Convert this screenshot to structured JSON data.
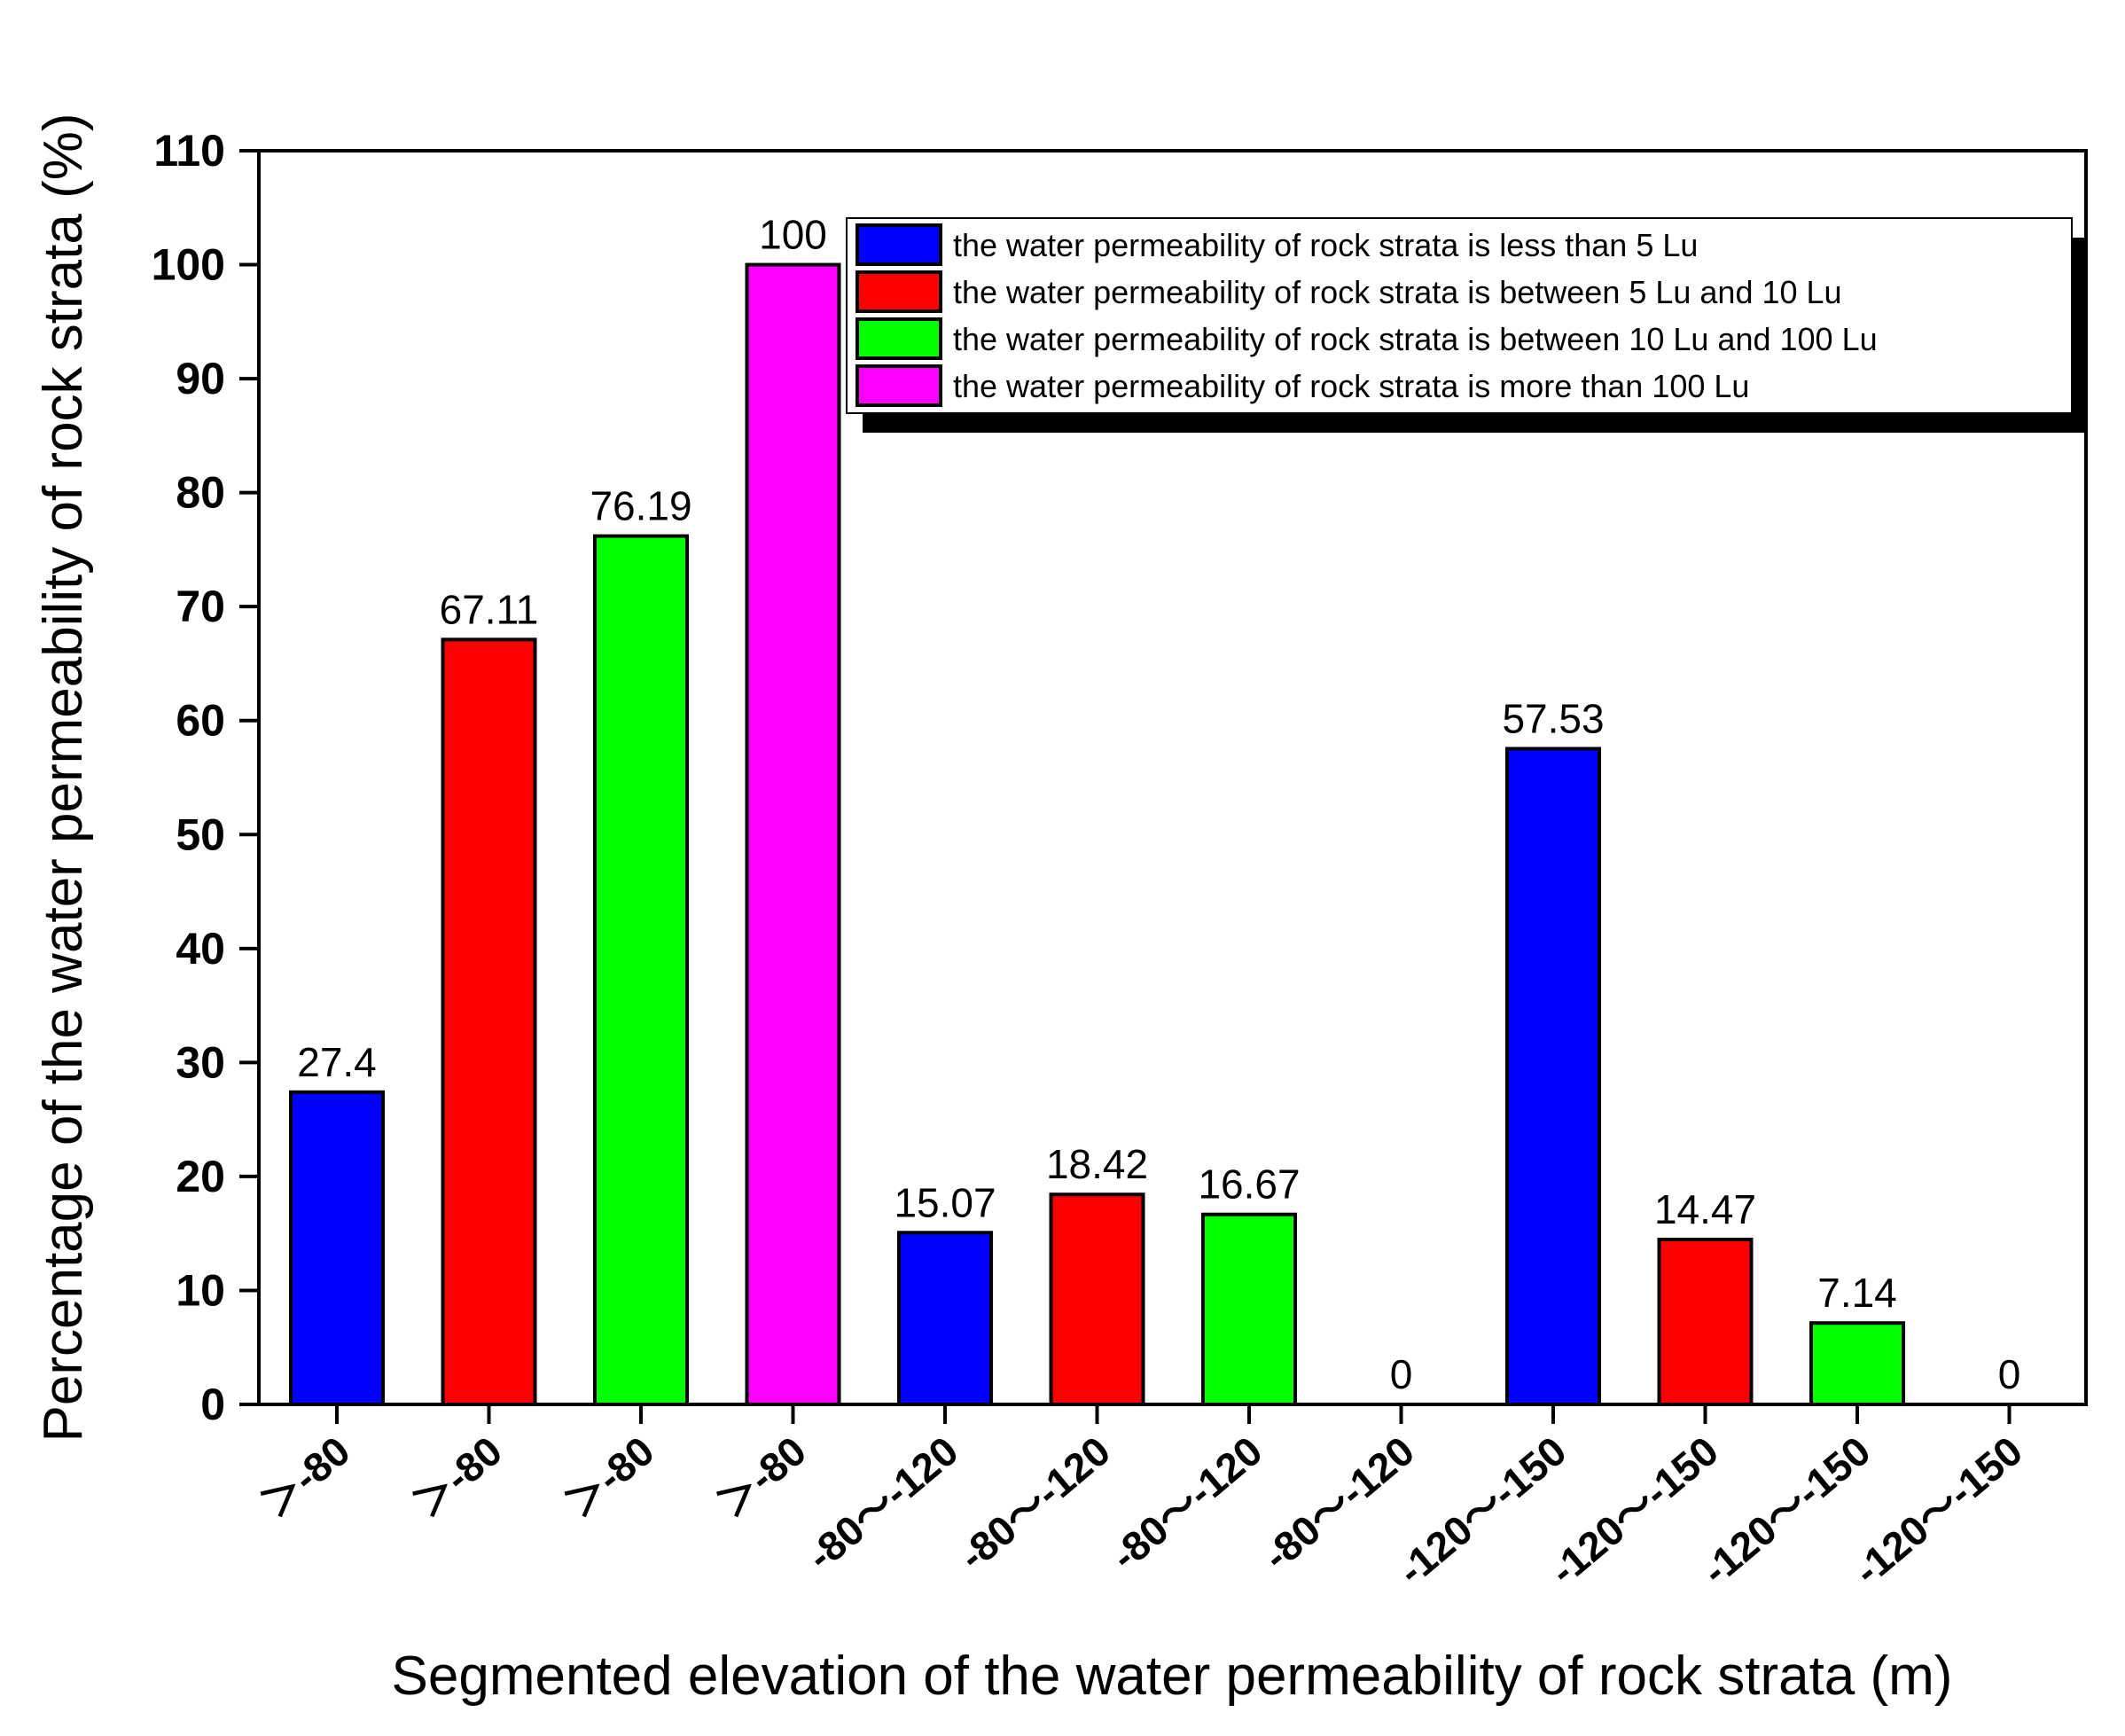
{
  "chart_data": {
    "type": "bar",
    "title": "",
    "xlabel": "Segmented elevation of the water permeability of rock strata (m)",
    "ylabel": "Percentage of the water permeability of rock strata (%)",
    "ylim": [
      0,
      110
    ],
    "yticks": [
      0,
      10,
      20,
      30,
      40,
      50,
      60,
      70,
      80,
      90,
      100,
      110
    ],
    "categories": [
      "＞-80",
      "＞-80",
      "＞-80",
      "＞-80",
      "-80～-120",
      "-80～-120",
      "-80～-120",
      "-80～-120",
      "-120～-150",
      "-120～-150",
      "-120～-150",
      "-120～-150"
    ],
    "values": [
      27.4,
      67.11,
      76.19,
      100,
      15.07,
      18.42,
      16.67,
      0,
      57.53,
      14.47,
      7.14,
      0
    ],
    "value_labels": [
      "27.4",
      "67.11",
      "76.19",
      "100",
      "15.07",
      "18.42",
      "16.67",
      "0",
      "57.53",
      "14.47",
      "7.14",
      "0"
    ],
    "bar_series": [
      0,
      1,
      2,
      3,
      0,
      1,
      2,
      3,
      0,
      1,
      2,
      3
    ],
    "series": [
      {
        "name": "the water permeability of rock strata is less than 5 Lu",
        "color": "#0000ff"
      },
      {
        "name": "the water permeability of rock strata is between 5 Lu and 10 Lu",
        "color": "#ff0000"
      },
      {
        "name": "the water permeability of rock strata is between 10 Lu and 100 Lu",
        "color": "#00ff00"
      },
      {
        "name": "the water permeability of rock strata is more than 100 Lu",
        "color": "#ff00ff"
      }
    ],
    "legend_position": "top-right",
    "grid": false
  }
}
